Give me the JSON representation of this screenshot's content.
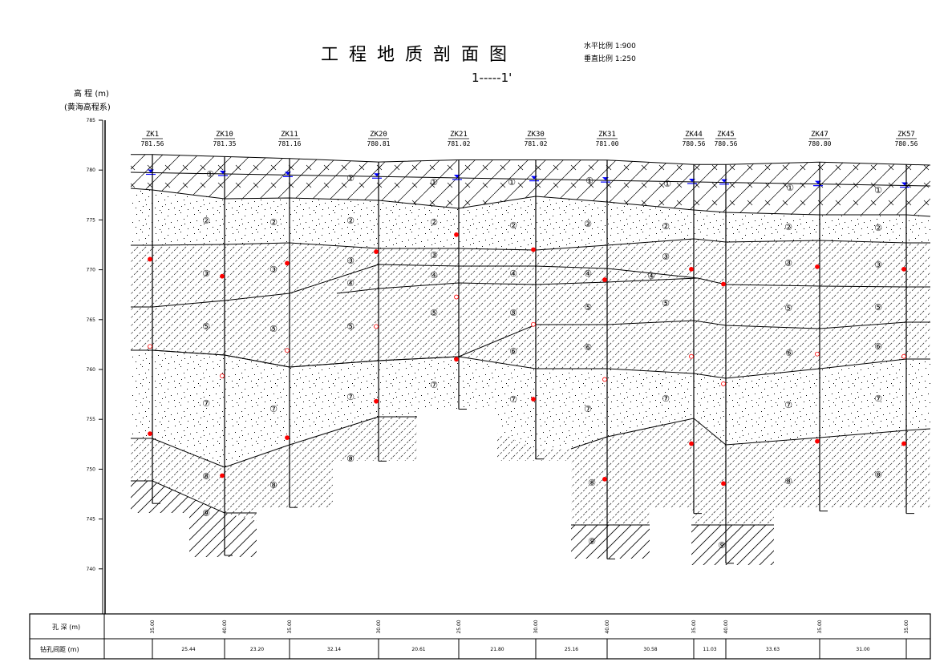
{
  "title": "工 程 地 质 剖 面 图",
  "section_label": "1-----1'",
  "scale": {
    "horizontal": "水平比例 1:900",
    "vertical": "垂直比例 1:250"
  },
  "y_axis": {
    "label": "高 程 (m)",
    "sublabel": "(黄海高程系)",
    "ticks": [
      "785",
      "780",
      "775",
      "770",
      "765",
      "760",
      "755",
      "750",
      "745",
      "740"
    ]
  },
  "boreholes": [
    {
      "name": "ZK1",
      "elevation": "781.56",
      "depth": "35.00"
    },
    {
      "name": "ZK10",
      "elevation": "781.35",
      "depth": "40.00"
    },
    {
      "name": "ZK11",
      "elevation": "781.16",
      "depth": "35.00"
    },
    {
      "name": "ZK20",
      "elevation": "780.81",
      "depth": "30.00"
    },
    {
      "name": "ZK21",
      "elevation": "781.02",
      "depth": "25.00"
    },
    {
      "name": "ZK30",
      "elevation": "781.02",
      "depth": "30.00"
    },
    {
      "name": "ZK31",
      "elevation": "781.00",
      "depth": "40.00"
    },
    {
      "name": "ZK44",
      "elevation": "780.56",
      "depth": "35.00"
    },
    {
      "name": "ZK45",
      "elevation": "780.56",
      "depth": "40.00"
    },
    {
      "name": "ZK47",
      "elevation": "780.80",
      "depth": "35.00"
    },
    {
      "name": "ZK57",
      "elevation": "780.56",
      "depth": "35.00"
    }
  ],
  "table": {
    "depth_label": "孔 深 (m)",
    "spacing_label": "钻孔间距 (m)",
    "spacings": [
      "25.44",
      "23.20",
      "32.14",
      "20.61",
      "21.80",
      "25.16",
      "30.58",
      "11.03",
      "33.63",
      "31.00"
    ]
  },
  "layer_numbers": [
    "①",
    "②",
    "③",
    "④",
    "⑤",
    "⑥",
    "⑦",
    "⑧",
    "⑨"
  ],
  "colors": {
    "line": "#000000",
    "water_level": "#0000ff",
    "sample_marker": "#ff0000"
  }
}
